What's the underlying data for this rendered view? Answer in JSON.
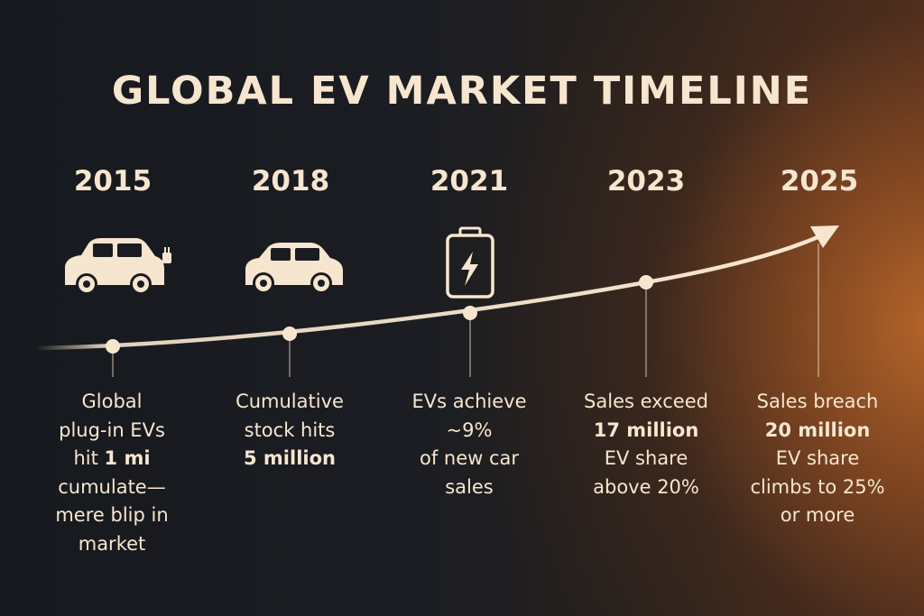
{
  "title": "GLOBAL EV MARKET TIMELINE",
  "colors": {
    "text": "#f7e6cf",
    "background_dark": "#16191e",
    "accent_glow": "#b5652a"
  },
  "milestones": [
    {
      "year": "2015",
      "icon": "ev-car-with-plug-icon",
      "lines": [
        "Global",
        "plug-in EVs",
        "hit ",
        "1 mi",
        "cumulate—",
        "mere blip in",
        "market"
      ]
    },
    {
      "year": "2018",
      "icon": "car-icon",
      "lines": [
        "Cumulative",
        "stock hits",
        "5 million"
      ]
    },
    {
      "year": "2021",
      "icon": "battery-charging-icon",
      "lines": [
        "EVs achieve",
        "~9%",
        "of new car",
        "sales"
      ]
    },
    {
      "year": "2023",
      "icon": null,
      "lines": [
        "Sales exceed",
        "17 million",
        "EV share",
        "above 20%"
      ]
    },
    {
      "year": "2025",
      "icon": null,
      "lines": [
        "Sales breach",
        "20 million",
        "EV share",
        "climbs to 25%",
        "or more"
      ]
    }
  ]
}
